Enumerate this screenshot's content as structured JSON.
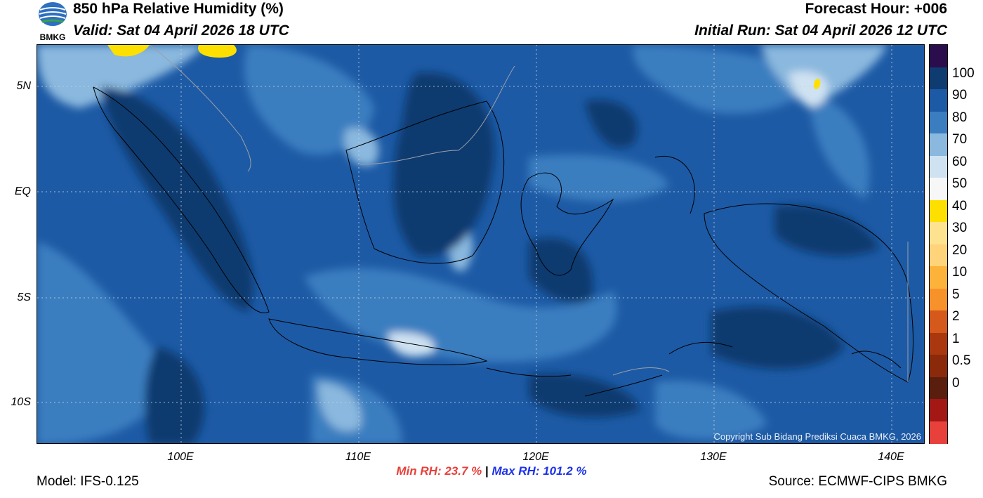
{
  "header": {
    "title": "850 hPa Relative Humidity (%)",
    "valid": "Valid: Sat 04 April 2026 18 UTC",
    "forecast_hour": "Forecast Hour: +006",
    "initial_run": "Initial Run: Sat 04 April 2026 12 UTC",
    "logo_text": "BMKG"
  },
  "map": {
    "lat_labels": [
      "5N",
      "EQ",
      "5S",
      "10S"
    ],
    "lon_labels": [
      "100E",
      "110E",
      "120E",
      "130E",
      "140E"
    ],
    "copyright": "Copyright Sub Bidang Prediksi Cuaca BMKG, 2026"
  },
  "colorbar": {
    "labels": [
      "100",
      "90",
      "80",
      "70",
      "60",
      "50",
      "40",
      "30",
      "20",
      "10",
      "5",
      "2",
      "1",
      "0.5",
      "0"
    ],
    "colors": [
      "#2b0d4d",
      "#0e3b70",
      "#1d5aa5",
      "#3b7ec0",
      "#8ab8de",
      "#cfe2f2",
      "#f7f7f7",
      "#fde000",
      "#fde28f",
      "#ffd37a",
      "#fdb23a",
      "#f7922a",
      "#d4591a",
      "#a9380f",
      "#8a2a0a",
      "#5a1e0e",
      "#a31715",
      "#e8403a"
    ]
  },
  "footer": {
    "model": "Model: IFS-0.125",
    "min_rh": "Min RH:  23.7 %",
    "separator": " | ",
    "max_rh": "Max RH: 101.2 %",
    "source": "Source: ECMWF-CIPS BMKG"
  }
}
